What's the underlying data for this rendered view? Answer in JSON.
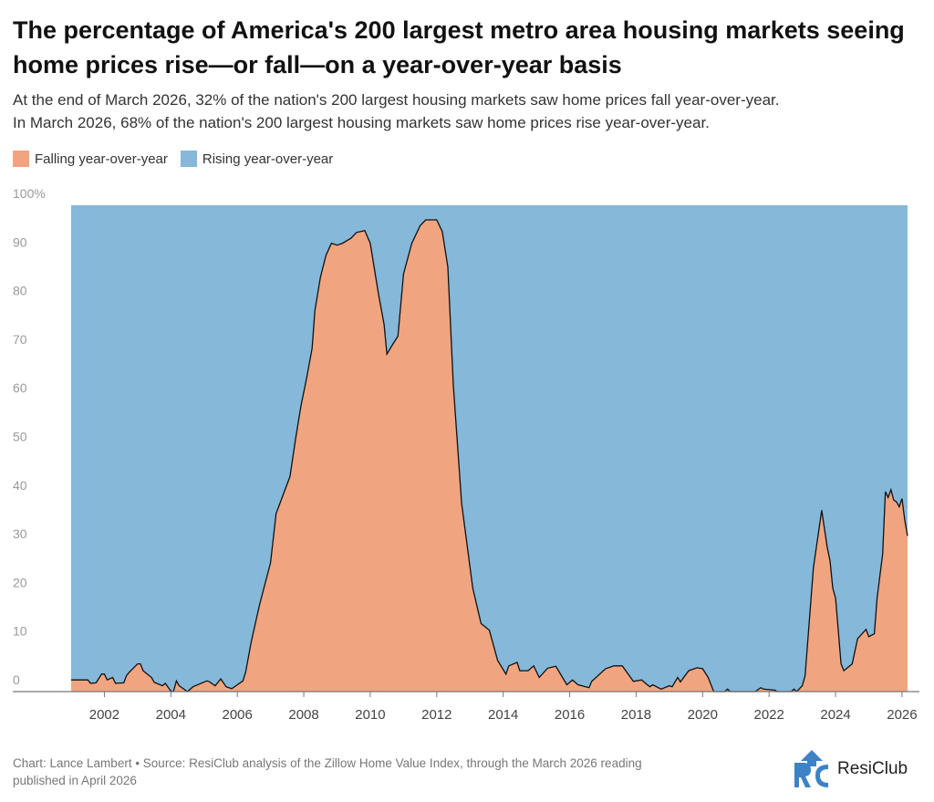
{
  "title": "The percentage of America's 200 largest metro area housing markets seeing home prices rise—or fall—on a year-over-year basis",
  "subtitle_lines": [
    "At the end of March 2026, 32% of the nation's 200 largest housing markets saw home prices fall year-over-year.",
    "In March 2026, 68% of the nation's 200 largest housing markets saw home prices rise year-over-year."
  ],
  "footer_lines": [
    "Chart: Lance Lambert • Source: ResiClub analysis of the Zillow Home Value Index, through the March 2026 reading",
    "published in April 2026"
  ],
  "logo": {
    "text": "ResiClub",
    "mark": "RC"
  },
  "chart_data": {
    "type": "area",
    "stacked_to": 100,
    "colors": {
      "falling": "#f0a580",
      "rising": "#85b8d9",
      "outline": "#111111"
    },
    "legend_position": "top-left",
    "series": [
      {
        "name": "Falling year-over-year",
        "color": "#f0a580"
      },
      {
        "name": "Rising year-over-year",
        "color": "#85b8d9"
      }
    ],
    "ylim": [
      0,
      100
    ],
    "y_ticks": [
      "0",
      "10",
      "20",
      "30",
      "40",
      "50",
      "60",
      "70",
      "80",
      "90",
      "100%"
    ],
    "x_ticks": [
      "2002",
      "2004",
      "2006",
      "2008",
      "2010",
      "2012",
      "2014",
      "2016",
      "2018",
      "2020",
      "2022",
      "2024",
      "2026"
    ],
    "grid": false,
    "xrange": [
      "2001-01",
      "2026-03"
    ],
    "falling_points": [
      [
        "2001-01",
        2.4
      ],
      [
        "2001-07",
        2.4
      ],
      [
        "2001-08",
        1.7
      ],
      [
        "2001-10",
        1.8
      ],
      [
        "2001-12",
        3.6
      ],
      [
        "2002-01",
        3.6
      ],
      [
        "2002-02",
        2.4
      ],
      [
        "2002-04",
        2.9
      ],
      [
        "2002-05",
        1.7
      ],
      [
        "2002-08",
        1.8
      ],
      [
        "2002-09",
        3.3
      ],
      [
        "2002-10",
        4.0
      ],
      [
        "2003-01",
        5.7
      ],
      [
        "2003-02",
        5.7
      ],
      [
        "2003-03",
        4.3
      ],
      [
        "2003-06",
        2.9
      ],
      [
        "2003-07",
        1.9
      ],
      [
        "2003-10",
        1.2
      ],
      [
        "2003-11",
        1.7
      ],
      [
        "2004-01",
        0.1
      ],
      [
        "2004-02",
        0.1
      ],
      [
        "2004-03",
        2.2
      ],
      [
        "2004-04",
        1.2
      ],
      [
        "2004-07",
        0
      ],
      [
        "2004-09",
        1.0
      ],
      [
        "2005-02",
        2.2
      ],
      [
        "2005-03",
        2.0
      ],
      [
        "2005-05",
        1.2
      ],
      [
        "2005-07",
        2.6
      ],
      [
        "2005-09",
        1.0
      ],
      [
        "2005-11",
        0.6
      ],
      [
        "2006-03",
        2.2
      ],
      [
        "2006-04",
        4.0
      ],
      [
        "2006-06",
        10.2
      ],
      [
        "2006-09",
        17.8
      ],
      [
        "2007-01",
        26.5
      ],
      [
        "2007-03",
        36.6
      ],
      [
        "2007-08",
        44.2
      ],
      [
        "2007-10",
        51.9
      ],
      [
        "2007-12",
        58.8
      ],
      [
        "2008-02",
        64.4
      ],
      [
        "2008-04",
        70.6
      ],
      [
        "2008-05",
        78.3
      ],
      [
        "2008-07",
        85.2
      ],
      [
        "2008-09",
        89.7
      ],
      [
        "2008-11",
        92.2
      ],
      [
        "2009-01",
        91.8
      ],
      [
        "2009-03",
        92.2
      ],
      [
        "2009-06",
        93.2
      ],
      [
        "2009-08",
        94.4
      ],
      [
        "2009-11",
        94.8
      ],
      [
        "2010-01",
        92.2
      ],
      [
        "2010-04",
        81.7
      ],
      [
        "2010-06",
        75.5
      ],
      [
        "2010-07",
        69.4
      ],
      [
        "2010-09",
        71.3
      ],
      [
        "2010-11",
        73.1
      ],
      [
        "2011-01",
        85.9
      ],
      [
        "2011-04",
        92.2
      ],
      [
        "2011-07",
        95.8
      ],
      [
        "2011-09",
        97.0
      ],
      [
        "2012-01",
        97.0
      ],
      [
        "2012-03",
        94.6
      ],
      [
        "2012-05",
        87.3
      ],
      [
        "2012-07",
        63.0
      ],
      [
        "2012-10",
        38.7
      ],
      [
        "2013-02",
        21.3
      ],
      [
        "2013-05",
        14.0
      ],
      [
        "2013-08",
        12.6
      ],
      [
        "2013-11",
        6.4
      ],
      [
        "2014-02",
        3.6
      ],
      [
        "2014-03",
        5.3
      ],
      [
        "2014-06",
        6.0
      ],
      [
        "2014-07",
        4.3
      ],
      [
        "2014-10",
        4.3
      ],
      [
        "2014-12",
        5.3
      ],
      [
        "2015-02",
        2.9
      ],
      [
        "2015-05",
        4.8
      ],
      [
        "2015-08",
        5.2
      ],
      [
        "2015-12",
        1.4
      ],
      [
        "2016-02",
        2.4
      ],
      [
        "2016-04",
        1.4
      ],
      [
        "2016-08",
        0.8
      ],
      [
        "2016-09",
        2.1
      ],
      [
        "2017-02",
        4.7
      ],
      [
        "2017-05",
        5.3
      ],
      [
        "2017-08",
        5.3
      ],
      [
        "2017-12",
        2.1
      ],
      [
        "2018-03",
        2.4
      ],
      [
        "2018-05",
        1.4
      ],
      [
        "2018-06",
        1.0
      ],
      [
        "2018-07",
        1.4
      ],
      [
        "2018-10",
        0.5
      ],
      [
        "2019-01",
        1.2
      ],
      [
        "2019-02",
        1.0
      ],
      [
        "2019-04",
        2.9
      ],
      [
        "2019-05",
        2.0
      ],
      [
        "2019-08",
        4.3
      ],
      [
        "2019-11",
        4.9
      ],
      [
        "2020-01",
        4.7
      ],
      [
        "2020-03",
        2.9
      ],
      [
        "2020-05",
        0
      ],
      [
        "2020-09",
        0
      ],
      [
        "2020-10",
        0.5
      ],
      [
        "2020-11",
        0
      ],
      [
        "2021-08",
        0
      ],
      [
        "2021-10",
        0.8
      ],
      [
        "2021-11",
        0.5
      ],
      [
        "2022-03",
        0.3
      ],
      [
        "2022-04",
        0
      ],
      [
        "2022-09",
        0
      ],
      [
        "2022-10",
        0.5
      ],
      [
        "2022-11",
        0
      ],
      [
        "2023-01",
        1.2
      ],
      [
        "2023-02",
        3.3
      ],
      [
        "2023-05",
        25.5
      ],
      [
        "2023-08",
        37.3
      ],
      [
        "2023-10",
        29.7
      ],
      [
        "2023-11",
        26.9
      ],
      [
        "2023-12",
        21.3
      ],
      [
        "2024-01",
        19.2
      ],
      [
        "2024-03",
        5.7
      ],
      [
        "2024-04",
        4.3
      ],
      [
        "2024-07",
        5.7
      ],
      [
        "2024-09",
        10.9
      ],
      [
        "2024-12",
        12.8
      ],
      [
        "2025-01",
        11.3
      ],
      [
        "2025-03",
        11.9
      ],
      [
        "2025-04",
        19.2
      ],
      [
        "2025-06",
        28.3
      ],
      [
        "2025-07",
        41.1
      ],
      [
        "2025-08",
        39.9
      ],
      [
        "2025-09",
        41.5
      ],
      [
        "2025-10",
        39.4
      ],
      [
        "2025-11",
        39.0
      ],
      [
        "2025-12",
        38.0
      ],
      [
        "2026-01",
        39.7
      ],
      [
        "2026-02",
        35.2
      ],
      [
        "2026-03",
        32.0
      ]
    ]
  }
}
